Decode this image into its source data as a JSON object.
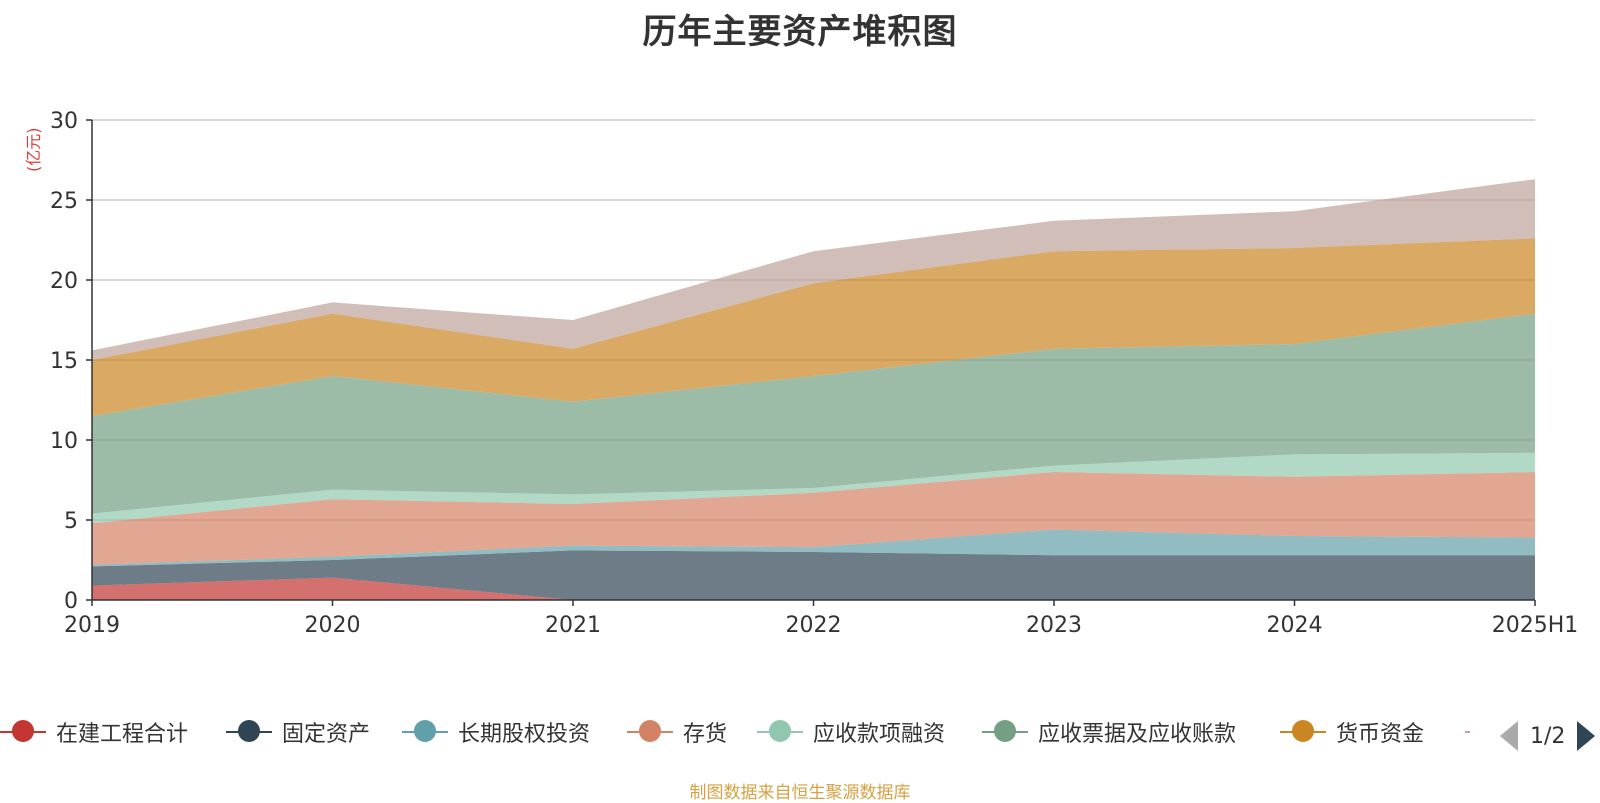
{
  "title": "历年主要资产堆积图",
  "unit_label": "(亿元)",
  "source_note": "制图数据来自恒生聚源数据库",
  "legend_pager": "1/2",
  "chart_data": {
    "type": "area",
    "stacked": true,
    "categories": [
      "2019",
      "2020",
      "2021",
      "2022",
      "2023",
      "2024",
      "2025H1"
    ],
    "ylim": [
      0,
      30
    ],
    "yticks": [
      0,
      5,
      10,
      15,
      20,
      25,
      30
    ],
    "grid": true,
    "legend_position": "bottom",
    "series": [
      {
        "name": "在建工程合计",
        "values": [
          0.9,
          1.4,
          0.0,
          0.0,
          0.0,
          0.0,
          0.0
        ],
        "color": "#c23531"
      },
      {
        "name": "固定资产",
        "values": [
          1.2,
          1.1,
          3.1,
          3.0,
          2.8,
          2.8,
          2.8
        ],
        "color": "#2f4554"
      },
      {
        "name": "长期股权投资",
        "values": [
          0.1,
          0.2,
          0.3,
          0.3,
          1.6,
          1.2,
          1.1
        ],
        "color": "#61a0a8"
      },
      {
        "name": "存货",
        "values": [
          2.6,
          3.6,
          2.6,
          3.4,
          3.6,
          3.7,
          4.1
        ],
        "color": "#d48265"
      },
      {
        "name": "应收款项融资",
        "values": [
          0.6,
          0.6,
          0.6,
          0.3,
          0.4,
          1.4,
          1.2
        ],
        "color": "#91c7ae"
      },
      {
        "name": "应收票据及应收账款",
        "values": [
          6.1,
          7.1,
          5.8,
          7.0,
          7.3,
          6.9,
          8.7
        ],
        "color": "#749f83"
      },
      {
        "name": "货币资金",
        "values": [
          3.5,
          3.9,
          3.3,
          5.8,
          6.1,
          6.0,
          4.7
        ],
        "color": "#ca8622"
      },
      {
        "name": "",
        "values": [
          0.6,
          0.7,
          1.8,
          2.0,
          1.9,
          2.3,
          3.7
        ],
        "color": "#bda29a"
      }
    ]
  }
}
